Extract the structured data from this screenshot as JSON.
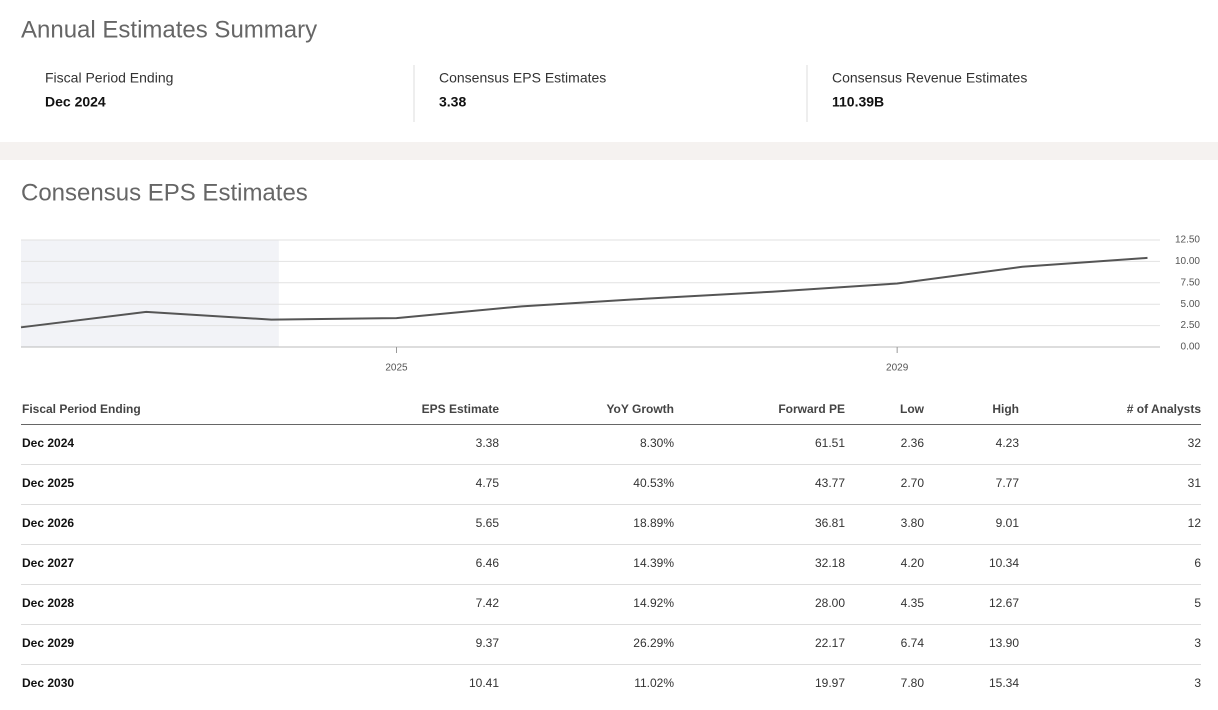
{
  "summary": {
    "title": "Annual Estimates Summary",
    "items": [
      {
        "label": "Fiscal Period Ending",
        "value": "Dec 2024"
      },
      {
        "label": "Consensus EPS Estimates",
        "value": "3.38"
      },
      {
        "label": "Consensus Revenue Estimates",
        "value": "110.39B"
      }
    ]
  },
  "eps": {
    "title": "Consensus EPS Estimates",
    "chart_data": {
      "type": "line",
      "x": [
        2022,
        2023,
        2024,
        2025,
        2026,
        2027,
        2028,
        2029,
        2030,
        2031
      ],
      "values": [
        2.3,
        4.1,
        3.2,
        3.38,
        4.75,
        5.65,
        6.46,
        7.42,
        9.37,
        10.41
      ],
      "color": "#555555",
      "xlim": [
        2022,
        2031.1
      ],
      "xticks": [
        2025,
        2029
      ],
      "shaded_xlim": [
        2022,
        2024.06
      ],
      "ylim": [
        0,
        12.5
      ],
      "yticks": [
        {
          "value": 0,
          "label": "0.00"
        },
        {
          "value": 2.5,
          "label": "2.50"
        },
        {
          "value": 5,
          "label": "5.00"
        },
        {
          "value": 7.5,
          "label": "7.50"
        },
        {
          "value": 10,
          "label": "10.00"
        },
        {
          "value": 12.5,
          "label": "12.50"
        }
      ],
      "grid": true
    },
    "table": {
      "columns": [
        "Fiscal Period Ending",
        "EPS Estimate",
        "YoY Growth",
        "Forward PE",
        "Low",
        "High",
        "# of Analysts"
      ],
      "rows": [
        [
          "Dec 2024",
          "3.38",
          "8.30%",
          "61.51",
          "2.36",
          "4.23",
          "32"
        ],
        [
          "Dec 2025",
          "4.75",
          "40.53%",
          "43.77",
          "2.70",
          "7.77",
          "31"
        ],
        [
          "Dec 2026",
          "5.65",
          "18.89%",
          "36.81",
          "3.80",
          "9.01",
          "12"
        ],
        [
          "Dec 2027",
          "6.46",
          "14.39%",
          "32.18",
          "4.20",
          "10.34",
          "6"
        ],
        [
          "Dec 2028",
          "7.42",
          "14.92%",
          "28.00",
          "4.35",
          "12.67",
          "5"
        ],
        [
          "Dec 2029",
          "9.37",
          "26.29%",
          "22.17",
          "6.74",
          "13.90",
          "3"
        ],
        [
          "Dec 2030",
          "10.41",
          "11.02%",
          "19.97",
          "7.80",
          "15.34",
          "3"
        ]
      ]
    }
  }
}
